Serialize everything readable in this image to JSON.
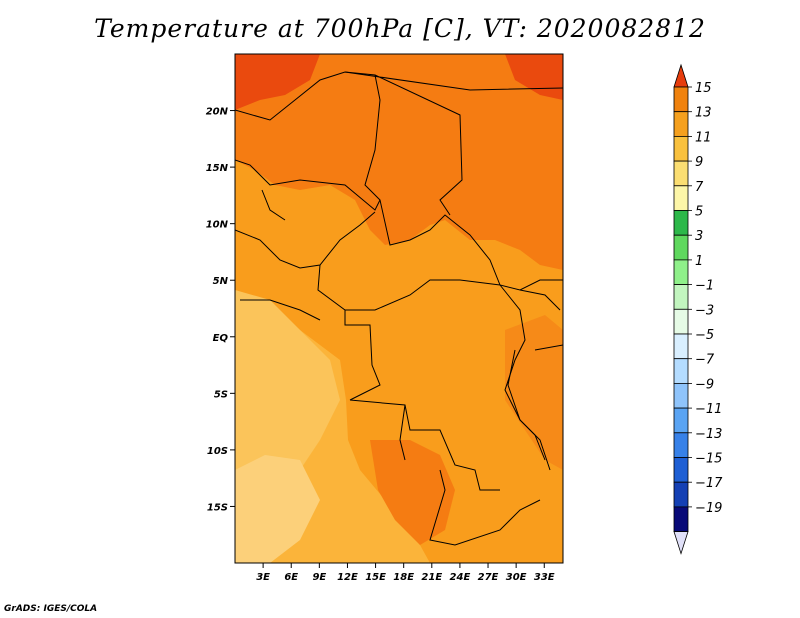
{
  "title": "Temperature at 700hPa [C], VT: 2020082812",
  "credit": "GrADS: IGES/COLA",
  "map": {
    "lon_range": [
      0,
      35
    ],
    "lat_range": [
      -20,
      25
    ],
    "lon_ticks": [
      {
        "value": 3,
        "label": "3E"
      },
      {
        "value": 6,
        "label": "6E"
      },
      {
        "value": 9,
        "label": "9E"
      },
      {
        "value": 12,
        "label": "12E"
      },
      {
        "value": 15,
        "label": "15E"
      },
      {
        "value": 18,
        "label": "18E"
      },
      {
        "value": 21,
        "label": "21E"
      },
      {
        "value": 24,
        "label": "24E"
      },
      {
        "value": 27,
        "label": "27E"
      },
      {
        "value": 30,
        "label": "30E"
      },
      {
        "value": 33,
        "label": "33E"
      }
    ],
    "lat_ticks": [
      {
        "value": 20,
        "label": "20N"
      },
      {
        "value": 15,
        "label": "15N"
      },
      {
        "value": 10,
        "label": "10N"
      },
      {
        "value": 5,
        "label": "5N"
      },
      {
        "value": 0,
        "label": "EQ"
      },
      {
        "value": -5,
        "label": "5S"
      },
      {
        "value": -10,
        "label": "10S"
      },
      {
        "value": -15,
        "label": "15S"
      }
    ]
  },
  "colorbar": {
    "labels": [
      "15",
      "13",
      "11",
      "9",
      "7",
      "5",
      "3",
      "1",
      "−1",
      "−3",
      "−5",
      "−7",
      "−9",
      "−11",
      "−13",
      "−15",
      "−17",
      "−19"
    ],
    "colors": [
      "#f0820e",
      "#f5a01e",
      "#f9c13e",
      "#fbde72",
      "#fdf6a8",
      "#2db84a",
      "#5fd85e",
      "#8ff08a",
      "#c2f5bf",
      "#e6fbe6",
      "#d9efff",
      "#b4dcff",
      "#8fc4fb",
      "#5aa4f3",
      "#3781e8",
      "#1e5fd4",
      "#1440b4",
      "#080a78"
    ],
    "top_color": "#e63c0c",
    "bottom_color": "#e0e0f8"
  }
}
